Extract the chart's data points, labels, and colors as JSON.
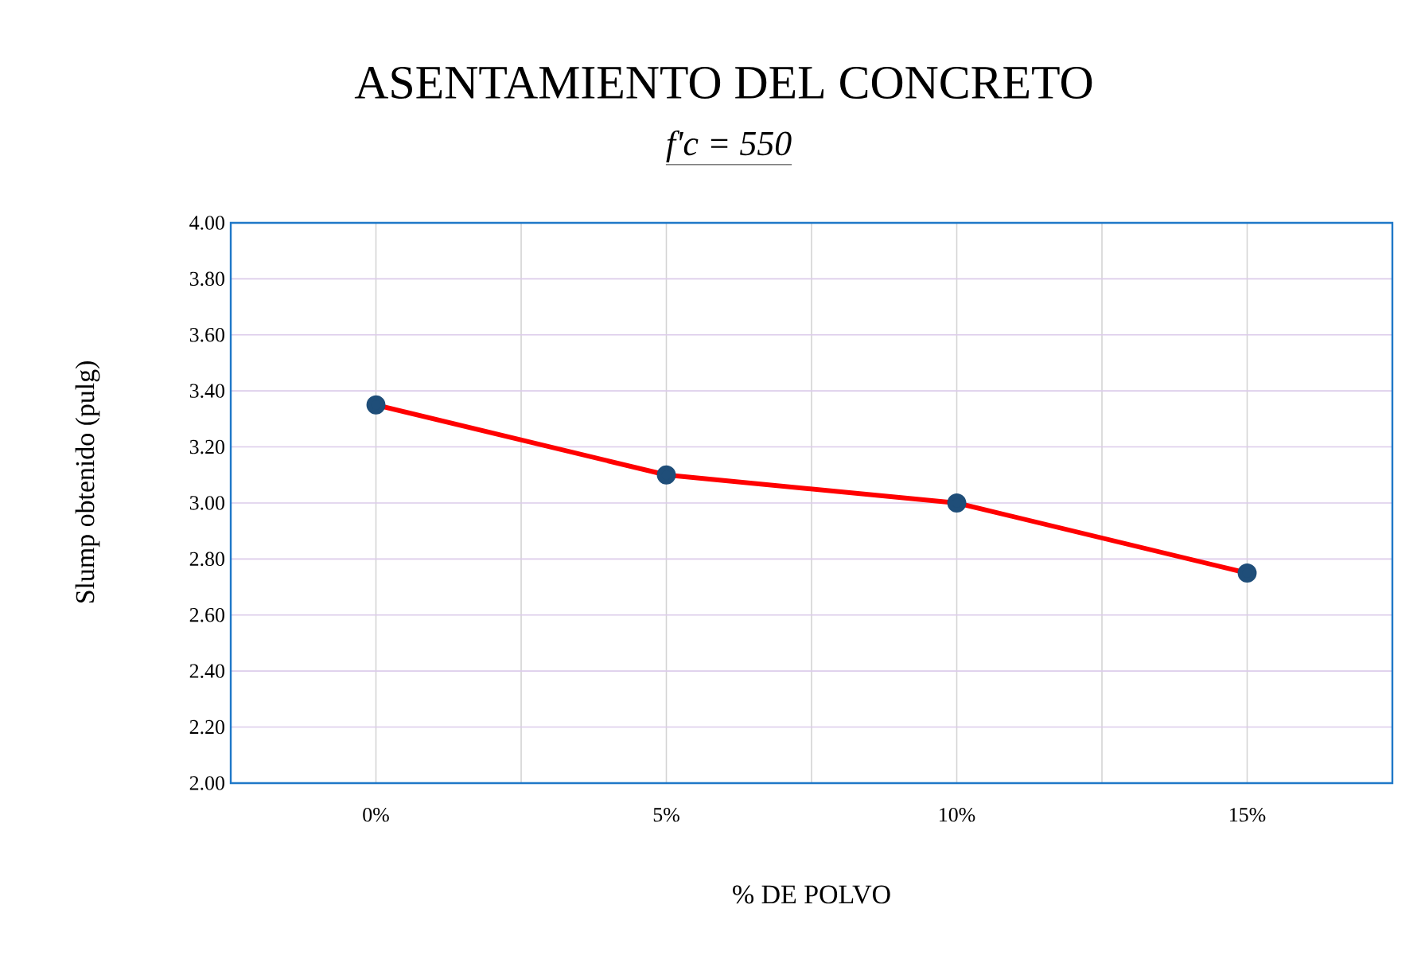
{
  "chart_data": {
    "type": "line",
    "title": "ASENTAMIENTO DEL CONCRETO",
    "subtitle": "f'c = 550",
    "xlabel": "% DE POLVO",
    "ylabel": "Slump obtenido (pulg)",
    "categories": [
      "0%",
      "5%",
      "10%",
      "15%"
    ],
    "series": [
      {
        "color": "#ff0000",
        "values": [
          3.35,
          3.1,
          3.0,
          2.75
        ]
      }
    ],
    "marker": "circle",
    "ylim": [
      2.0,
      4.0
    ],
    "yticks": [
      {
        "value": 2.0,
        "label": "2.00"
      },
      {
        "value": 2.2,
        "label": "2.20"
      },
      {
        "value": 2.4,
        "label": "2.40"
      },
      {
        "value": 2.6,
        "label": "2.60"
      },
      {
        "value": 2.8,
        "label": "2.80"
      },
      {
        "value": 3.0,
        "label": "3.00"
      },
      {
        "value": 3.2,
        "label": "3.20"
      },
      {
        "value": 3.4,
        "label": "3.40"
      },
      {
        "value": 3.6,
        "label": "3.60"
      },
      {
        "value": 3.8,
        "label": "3.80"
      },
      {
        "value": 4.0,
        "label": "4.00"
      }
    ],
    "grid": true
  }
}
